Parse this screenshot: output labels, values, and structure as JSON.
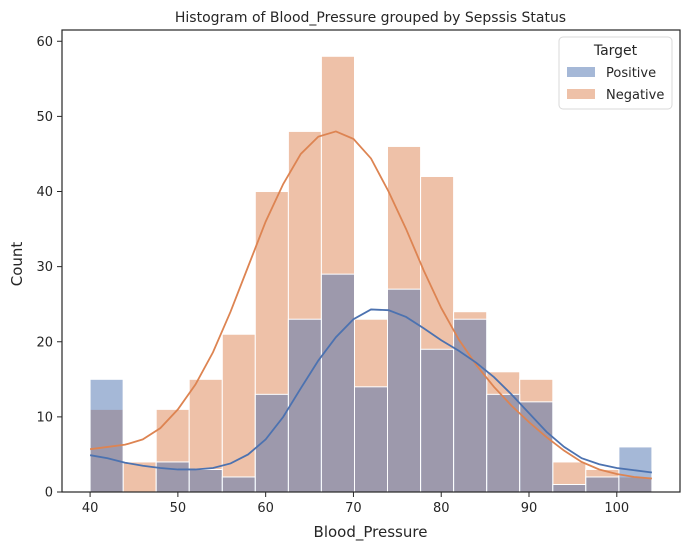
{
  "chart_data": {
    "type": "histogram",
    "title": "Histogram of Blood_Pressure grouped by Sepssis  Status",
    "xlabel": "Blood_Pressure",
    "ylabel": "Count",
    "xlim": [
      36.8,
      107.2
    ],
    "ylim": [
      0,
      61.5
    ],
    "xticks": [
      40,
      50,
      60,
      70,
      80,
      90,
      100
    ],
    "yticks": [
      0,
      10,
      20,
      30,
      40,
      50,
      60
    ],
    "bin_edges": [
      40,
      43.765,
      47.53,
      51.29,
      55.06,
      58.82,
      62.59,
      66.35,
      70.12,
      73.88,
      77.65,
      81.41,
      85.18,
      88.94,
      92.71,
      96.47,
      100.24,
      104
    ],
    "legend": {
      "title": "Target",
      "position": "top-right"
    },
    "series": [
      {
        "name": "Positive",
        "color": "#4c72b0",
        "values": [
          15,
          0,
          4,
          3,
          2,
          13,
          23,
          29,
          14,
          27,
          19,
          23,
          13,
          12,
          1,
          2,
          6
        ],
        "kde_x": [
          40,
          42,
          44,
          46,
          48,
          50,
          52,
          54,
          56,
          58,
          60,
          62,
          64,
          66,
          68,
          70,
          72,
          74,
          76,
          78,
          80,
          82,
          84,
          86,
          88,
          90,
          92,
          94,
          96,
          98,
          100,
          102,
          104
        ],
        "kde_y": [
          4.9,
          4.5,
          3.9,
          3.5,
          3.2,
          3.0,
          3.0,
          3.2,
          3.8,
          5.0,
          7.0,
          10.0,
          13.8,
          17.5,
          20.6,
          23.0,
          24.3,
          24.2,
          23.3,
          21.8,
          20.2,
          18.8,
          17.2,
          15.3,
          13.0,
          10.5,
          8.0,
          6.0,
          4.5,
          3.7,
          3.2,
          2.9,
          2.6
        ]
      },
      {
        "name": "Negative",
        "color": "#dd8452",
        "values": [
          11,
          4,
          11,
          15,
          21,
          40,
          48,
          58,
          23,
          46,
          42,
          24,
          16,
          15,
          4,
          3,
          2
        ],
        "kde_x": [
          40,
          42,
          44,
          46,
          48,
          50,
          52,
          54,
          56,
          58,
          60,
          62,
          64,
          66,
          68,
          70,
          72,
          74,
          76,
          78,
          80,
          82,
          84,
          86,
          88,
          90,
          92,
          94,
          96,
          98,
          100,
          102,
          104
        ],
        "kde_y": [
          5.7,
          6.0,
          6.3,
          7.0,
          8.5,
          11.0,
          14.3,
          18.6,
          24.0,
          30.0,
          36.0,
          41.0,
          45.0,
          47.3,
          48.0,
          47.0,
          44.4,
          40.0,
          35.0,
          29.5,
          24.5,
          20.3,
          16.9,
          14.0,
          11.5,
          9.3,
          7.3,
          5.5,
          4.0,
          3.0,
          2.4,
          2.0,
          1.8
        ]
      }
    ]
  }
}
